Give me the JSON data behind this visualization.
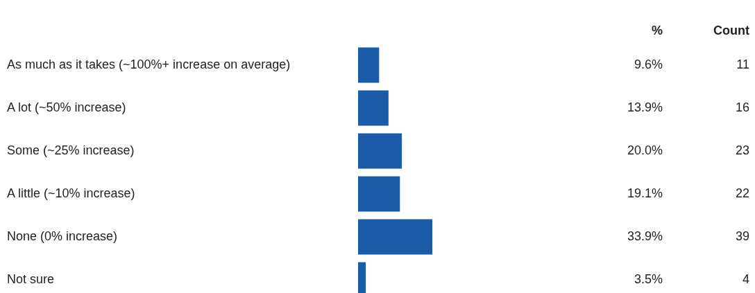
{
  "chart_data": {
    "type": "bar",
    "orientation": "horizontal",
    "categories": [
      "As much as it takes (~100%+ increase on average)",
      "A lot (~50% increase)",
      "Some (~25% increase)",
      "A little (~10% increase)",
      "None (0% increase)",
      "Not sure"
    ],
    "values": [
      9.6,
      13.9,
      20.0,
      19.1,
      33.9,
      3.5
    ],
    "value_labels": [
      "9.6%",
      "13.9%",
      "20.0%",
      "19.1%",
      "33.9%",
      "3.5%"
    ],
    "color": "#1a5ca8",
    "annotations": [
      "%",
      "Count",
      "11",
      "16",
      "23",
      "22",
      "39",
      "4"
    ]
  }
}
